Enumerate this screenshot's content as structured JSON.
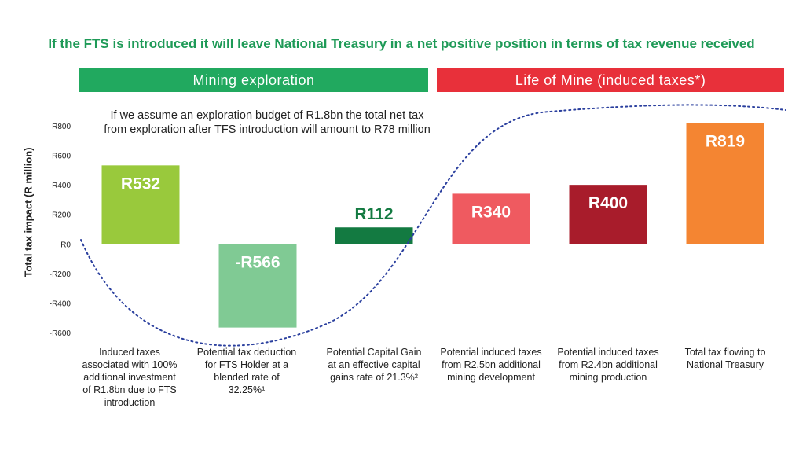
{
  "title": "If the FTS is introduced it will leave National Treasury in a net positive position in terms of tax revenue received",
  "banners": {
    "mining": "Mining exploration",
    "life_of_mine": "Life of Mine (induced taxes*)"
  },
  "note": "If we assume an exploration budget of R1.8bn the total net tax from exploration after TFS introduction will amount to R78 million",
  "colors": {
    "title": "#1e9a57",
    "mining_banner": "#21a95f",
    "lom_banner": "#e8303a"
  },
  "chart_data": {
    "type": "bar",
    "ylabel": "Total tax impact (R million)",
    "ylim": [
      -600,
      800
    ],
    "yticks": [
      800,
      600,
      400,
      200,
      0,
      -200,
      -400,
      -600
    ],
    "ytick_labels": [
      "R800",
      "R600",
      "R400",
      "R200",
      "R0",
      "-R200",
      "-R400",
      "-R600"
    ],
    "categories": [
      "Induced taxes associated with 100% additional investment of R1.8bn due to FTS introduction",
      "Potential tax deduction for FTS Holder at a blended rate of 32.25%¹",
      "Potential Capital Gain at an effective capital gains rate of 21.3%²",
      "Potential induced taxes from R2.5bn additional mining development",
      "Potential induced taxes from R2.4bn additional mining production",
      "Total tax flowing to National Treasury"
    ],
    "values": [
      532,
      -566,
      112,
      340,
      400,
      819
    ],
    "value_labels": [
      "R532",
      "-R566",
      "R112",
      "R340",
      "R400",
      "R819"
    ],
    "bar_colors": [
      "#99c93c",
      "#80ca94",
      "#137a41",
      "#ef5a60",
      "#a81c2b",
      "#f48532"
    ],
    "label_colors": [
      "#ffffff",
      "#ffffff",
      "#137a41",
      "#ffffff",
      "#ffffff",
      "#ffffff"
    ],
    "label_inside": [
      true,
      true,
      false,
      true,
      true,
      true
    ],
    "curve_color": "#2a3f9e"
  }
}
